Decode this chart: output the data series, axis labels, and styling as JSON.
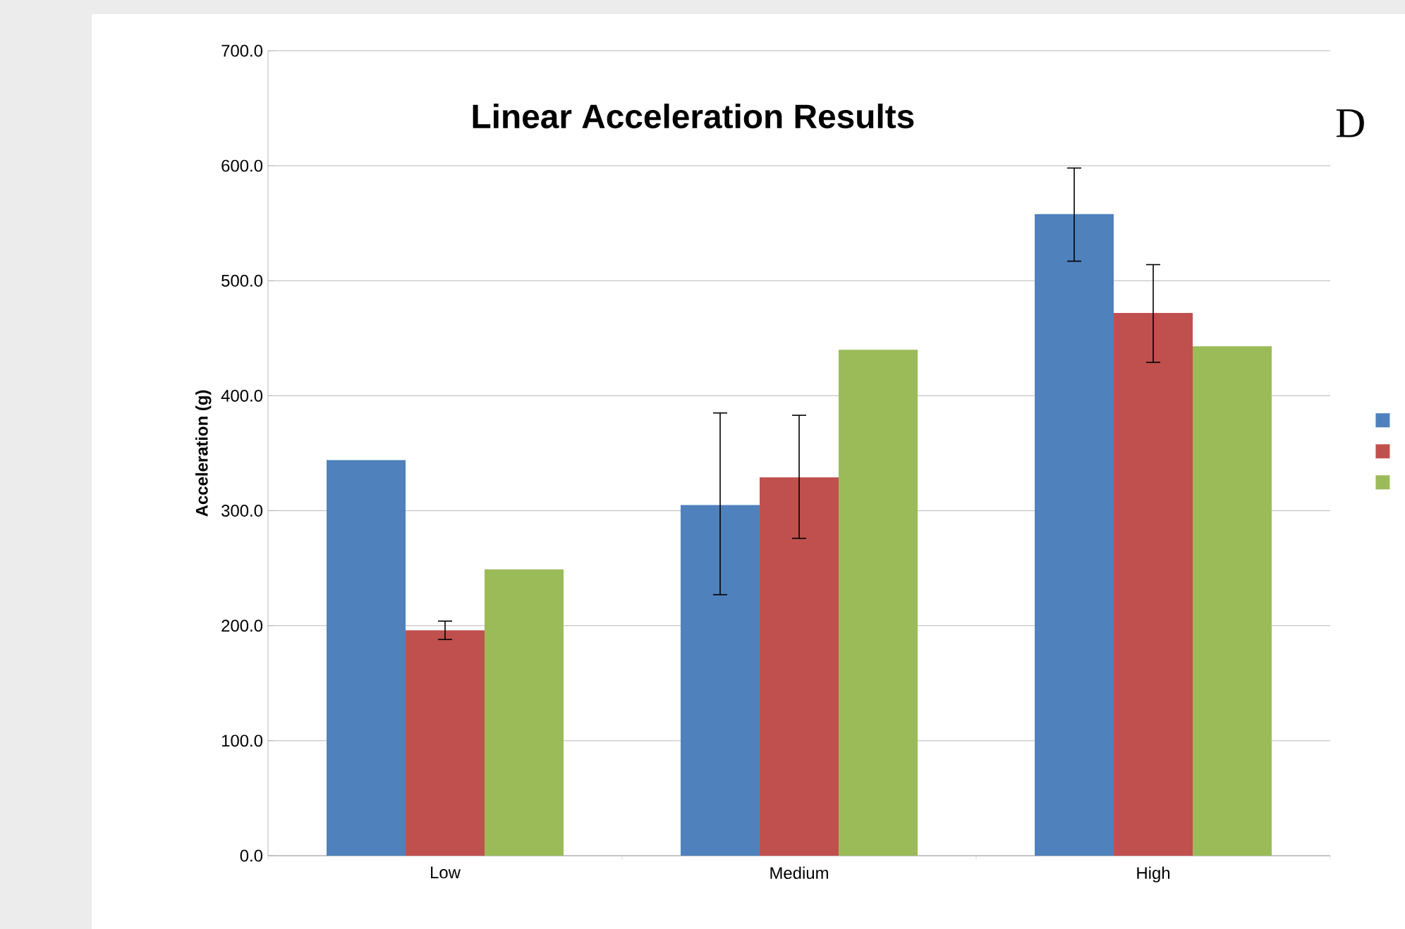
{
  "chart_data": {
    "type": "bar",
    "title": "Linear Acceleration Results",
    "ylabel": "Acceleration (g)",
    "categories": [
      "Low",
      "Medium",
      "High"
    ],
    "series": [
      {
        "color": "#4f81bd",
        "values": [
          344,
          305,
          558
        ],
        "errors": [
          null,
          [
            227,
            385
          ],
          [
            517,
            598
          ]
        ]
      },
      {
        "color": "#c0504d",
        "values": [
          196,
          329,
          472
        ],
        "errors": [
          [
            188,
            204
          ],
          [
            276,
            383
          ],
          [
            429,
            514
          ]
        ]
      },
      {
        "color": "#9bbb59",
        "values": [
          249,
          440,
          443
        ],
        "errors": [
          null,
          null,
          null
        ]
      }
    ],
    "ylim": [
      0,
      700
    ],
    "yticks": [
      {
        "value": 0,
        "label": "0.0"
      },
      {
        "value": 100,
        "label": "100.0"
      },
      {
        "value": 200,
        "label": "200.0"
      },
      {
        "value": 300,
        "label": "300.0"
      },
      {
        "value": 400,
        "label": "400.0"
      },
      {
        "value": 500,
        "label": "500.0"
      },
      {
        "value": 600,
        "label": "600.0"
      },
      {
        "value": 700,
        "label": "700.0"
      }
    ],
    "grid": "y",
    "annotations": [
      "D"
    ]
  }
}
